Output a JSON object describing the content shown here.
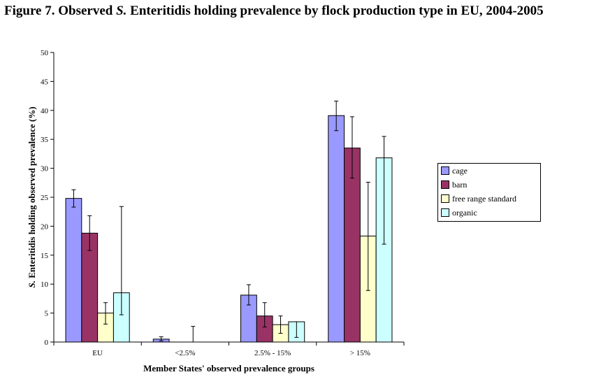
{
  "title": {
    "prefix": "Figure 7.   Observed ",
    "italic": "S.",
    "suffix": " Enteritidis holding prevalence by flock production type in EU, 2004-2005"
  },
  "chart_data": {
    "type": "bar",
    "categories": [
      "EU",
      "<2.5%",
      "2.5% - 15%",
      "> 15%"
    ],
    "series": [
      {
        "name": "cage",
        "color": "#9999ff",
        "values": [
          24.8,
          0.5,
          8.1,
          39.1
        ],
        "err_low": [
          23.3,
          0.2,
          6.4,
          36.5
        ],
        "err_high": [
          26.3,
          0.9,
          9.9,
          41.6
        ]
      },
      {
        "name": "barn",
        "color": "#993366",
        "values": [
          18.8,
          0,
          4.5,
          33.5
        ],
        "err_low": [
          15.8,
          null,
          2.6,
          28.3
        ],
        "err_high": [
          21.8,
          null,
          6.8,
          38.9
        ]
      },
      {
        "name": "free range standard",
        "color": "#ffffcc",
        "values": [
          5.0,
          0,
          3.0,
          18.3
        ],
        "err_low": [
          3.1,
          null,
          1.5,
          8.9
        ],
        "err_high": [
          6.8,
          2.7,
          4.5,
          27.6
        ]
      },
      {
        "name": "organic",
        "color": "#ccffff",
        "values": [
          8.5,
          0,
          3.5,
          31.8
        ],
        "err_low": [
          4.7,
          null,
          0.8,
          16.9
        ],
        "err_high": [
          23.4,
          null,
          null,
          35.5
        ]
      }
    ],
    "xlabel": "Member States' observed prevalence groups",
    "ylabel_italic": "S.",
    "ylabel_rest": " Enteritidis holding observed prevalence (%)",
    "ylim": [
      0,
      50
    ],
    "yticks": [
      0,
      5,
      10,
      15,
      20,
      25,
      30,
      35,
      40,
      45,
      50
    ],
    "grid": false,
    "legend_position": "right"
  }
}
